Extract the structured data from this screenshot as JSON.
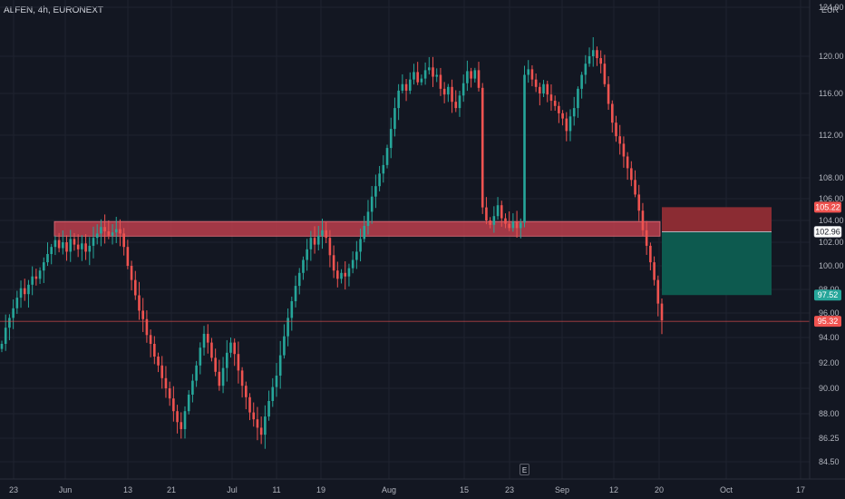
{
  "header": {
    "title": "ALFEN, 4h, EURONEXT",
    "currency": "EUR"
  },
  "events_badge": "E",
  "colors": {
    "bg": "#131722",
    "up": "#26a69a",
    "down": "#ef5350",
    "grid": "#1f2330",
    "zone": "#c2404e"
  },
  "chart_data": {
    "type": "candlestick",
    "title": "ALFEN, 4h, EURONEXT",
    "ylabel": "EUR",
    "ylim": [
      83.5,
      125
    ],
    "y_ticks": [
      "84.50",
      "86.25",
      "88.00",
      "90.00",
      "92.00",
      "94.00",
      "96.00",
      "98.00",
      "100.00",
      "102.00",
      "104.00",
      "106.00",
      "108.00",
      "112.00",
      "116.00",
      "120.00",
      "124.00"
    ],
    "x_ticks": [
      "23",
      "Jun",
      "13",
      "21",
      "Jul",
      "11",
      "19",
      "Aug",
      "15",
      "23",
      "Sep",
      "12",
      "20",
      "Oct",
      "17"
    ],
    "price_labels": {
      "entry": "102.96",
      "stop": "105.22",
      "target": "97.52",
      "current": "95.32"
    },
    "closes": [
      93.5,
      94.8,
      95.6,
      96.4,
      97.3,
      98.1,
      97.6,
      98.4,
      99.1,
      98.9,
      99.6,
      100.3,
      101.0,
      101.6,
      102.2,
      101.5,
      102.0,
      101.2,
      102.3,
      101.8,
      101.4,
      101.9,
      101.2,
      101.7,
      102.4,
      102.8,
      103.4,
      103.0,
      102.6,
      102.9,
      103.2,
      102.8,
      101.6,
      100.0,
      98.8,
      97.5,
      96.2,
      95.5,
      94.2,
      93.5,
      92.5,
      91.8,
      90.8,
      90.0,
      89.2,
      88.2,
      87.4,
      86.9,
      88.2,
      89.5,
      90.6,
      91.8,
      93.2,
      94.3,
      93.6,
      92.4,
      91.3,
      90.2,
      91.6,
      92.8,
      93.6,
      92.7,
      91.4,
      90.2,
      89.3,
      88.1,
      87.6,
      87.0,
      86.5,
      87.8,
      89.0,
      90.1,
      91.0,
      92.6,
      94.1,
      95.6,
      97.0,
      98.3,
      99.4,
      100.5,
      101.4,
      102.4,
      101.8,
      102.6,
      103.1,
      102.4,
      100.9,
      99.6,
      98.9,
      99.4,
      99.1,
      99.8,
      100.5,
      101.2,
      102.3,
      103.5,
      104.8,
      106.2,
      107.2,
      108.4,
      109.2,
      110.8,
      112.6,
      114.6,
      116.3,
      117.0,
      116.3,
      117.5,
      118.3,
      117.2,
      117.6,
      118.5,
      118.8,
      117.8,
      118.0,
      116.5,
      115.9,
      116.7,
      115.2,
      114.6,
      115.8,
      117.1,
      118.4,
      117.6,
      118.5,
      116.6,
      105.2,
      104.0,
      103.6,
      104.4,
      105.4,
      104.2,
      103.7,
      103.3,
      103.9,
      103.3,
      103.8,
      118.0,
      118.6,
      117.5,
      116.7,
      116.0,
      117.0,
      115.9,
      115.3,
      114.8,
      114.1,
      113.6,
      112.4,
      113.8,
      114.6,
      116.5,
      118.0,
      119.2,
      120.0,
      120.5,
      119.8,
      119.2,
      117.0,
      115.0,
      113.2,
      111.9,
      111.2,
      110.0,
      108.9,
      107.8,
      106.4,
      104.9,
      103.1,
      101.7,
      100.3,
      98.8,
      96.8,
      95.4
    ],
    "trade_box": {
      "entry": 102.96,
      "stop": 105.22,
      "target": 97.52
    },
    "resistance_zone": [
      102.56,
      103.9
    ]
  }
}
